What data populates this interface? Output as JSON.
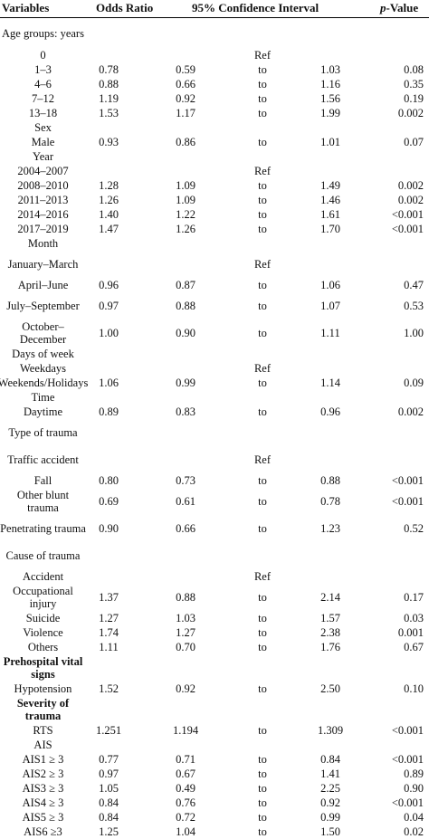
{
  "header": {
    "variables": "Variables",
    "odds_ratio": "Odds Ratio",
    "ci": "95% Confidence Interval",
    "p_italic": "p",
    "p_rest": "-Value"
  },
  "rows": [
    {
      "label": "Age groups: years",
      "h": 33
    },
    {
      "label": "0",
      "or": "",
      "lo": "",
      "to": "Ref",
      "hi": "",
      "p": "",
      "h": 16
    },
    {
      "label": "1–3",
      "or": "0.78",
      "lo": "0.59",
      "to": "to",
      "hi": "1.03",
      "p": "0.08",
      "h": 16
    },
    {
      "label": "4–6",
      "or": "0.88",
      "lo": "0.66",
      "to": "to",
      "hi": "1.16",
      "p": "0.35",
      "h": 16
    },
    {
      "label": "7–12",
      "or": "1.19",
      "lo": "0.92",
      "to": "to",
      "hi": "1.56",
      "p": "0.19",
      "h": 16
    },
    {
      "label": "13–18",
      "or": "1.53",
      "lo": "1.17",
      "to": "to",
      "hi": "1.99",
      "p": "0.002",
      "h": 16
    },
    {
      "label": "Sex",
      "h": 16
    },
    {
      "label": "Male",
      "or": "0.93",
      "lo": "0.86",
      "to": "to",
      "hi": "1.01",
      "p": "0.07",
      "h": 16
    },
    {
      "label": "Year",
      "h": 16
    },
    {
      "label": "2004–2007",
      "to": "Ref",
      "h": 16
    },
    {
      "label": "2008–2010",
      "or": "1.28",
      "lo": "1.09",
      "to": "to",
      "hi": "1.49",
      "p": "0.002",
      "h": 16
    },
    {
      "label": "2011–2013",
      "or": "1.26",
      "lo": "1.09",
      "to": "to",
      "hi": "1.46",
      "p": "0.002",
      "h": 16
    },
    {
      "label": "2014–2016",
      "or": "1.40",
      "lo": "1.22",
      "to": "to",
      "hi": "1.61",
      "p": "<0.001",
      "h": 16
    },
    {
      "label": "2017–2019",
      "or": "1.47",
      "lo": "1.26",
      "to": "to",
      "hi": "1.70",
      "p": "<0.001",
      "h": 16
    },
    {
      "label": "Month",
      "h": 16
    },
    {
      "label": "January–March",
      "to": "Ref",
      "h": 30
    },
    {
      "label": "April–June",
      "or": "0.96",
      "lo": "0.87",
      "to": "to",
      "hi": "1.06",
      "p": "0.47",
      "h": 16
    },
    {
      "label": "July–September",
      "or": "0.97",
      "lo": "0.88",
      "to": "to",
      "hi": "1.07",
      "p": "0.53",
      "h": 30
    },
    {
      "label": "October–December",
      "or": "1.00",
      "lo": "0.90",
      "to": "to",
      "hi": "1.11",
      "p": "1.00",
      "h": 30
    },
    {
      "label": "Days of week",
      "h": 16
    },
    {
      "label": "Weekdays",
      "to": "Ref",
      "h": 16
    },
    {
      "label": "Weekends/Holidays",
      "or": "1.06",
      "lo": "0.99",
      "to": "to",
      "hi": "1.14",
      "p": "0.09",
      "h": 16
    },
    {
      "label": "Time",
      "h": 16
    },
    {
      "label": "Daytime",
      "or": "0.89",
      "lo": "0.83",
      "to": "to",
      "hi": "0.96",
      "p": "0.002",
      "h": 16
    },
    {
      "label": "Type of trauma",
      "h": 30
    },
    {
      "label": "Traffic accident",
      "to": "Ref",
      "h": 30
    },
    {
      "label": "Fall",
      "or": "0.80",
      "lo": "0.73",
      "to": "to",
      "hi": "0.88",
      "p": "<0.001",
      "h": 16
    },
    {
      "label": "Other blunt trauma",
      "or": "0.69",
      "lo": "0.61",
      "to": "to",
      "hi": "0.78",
      "p": "<0.001",
      "h": 30
    },
    {
      "label": "Penetrating trauma",
      "or": "0.90",
      "lo": "0.66",
      "to": "to",
      "hi": "1.23",
      "p": "0.52",
      "h": 30
    },
    {
      "label": "Cause of trauma",
      "h": 30
    },
    {
      "label": "Accident",
      "to": "Ref",
      "h": 16
    },
    {
      "label": "Occupational injury",
      "or": "1.37",
      "lo": "0.88",
      "to": "to",
      "hi": "2.14",
      "p": "0.17",
      "h": 30
    },
    {
      "label": "Suicide",
      "or": "1.27",
      "lo": "1.03",
      "to": "to",
      "hi": "1.57",
      "p": "0.03",
      "h": 16
    },
    {
      "label": "Violence",
      "or": "1.74",
      "lo": "1.27",
      "to": "to",
      "hi": "2.38",
      "p": "0.001",
      "h": 16
    },
    {
      "label": "Others",
      "or": "1.11",
      "lo": "0.70",
      "to": "to",
      "hi": "1.76",
      "p": "0.67",
      "h": 16
    },
    {
      "label": "Prehospital vital signs",
      "bold": true,
      "h": 30
    },
    {
      "label": "Hypotension",
      "or": "1.52",
      "lo": "0.92",
      "to": "to",
      "hi": "2.50",
      "p": "0.10",
      "h": 16
    },
    {
      "label": "Severity of trauma",
      "bold": true,
      "h": 30
    },
    {
      "label": "RTS",
      "or": "1.251",
      "lo": "1.194",
      "to": "to",
      "hi": "1.309",
      "p": "<0.001",
      "h": 16
    },
    {
      "label": "AIS",
      "h": 16
    },
    {
      "label": "AIS1 ≥ 3",
      "or": "0.77",
      "lo": "0.71",
      "to": "to",
      "hi": "0.84",
      "p": "<0.001",
      "h": 16
    },
    {
      "label": "AIS2 ≥ 3",
      "or": "0.97",
      "lo": "0.67",
      "to": "to",
      "hi": "1.41",
      "p": "0.89",
      "h": 16
    },
    {
      "label": "AIS3 ≥ 3",
      "or": "1.05",
      "lo": "0.49",
      "to": "to",
      "hi": "2.25",
      "p": "0.90",
      "h": 16
    },
    {
      "label": "AIS4 ≥ 3",
      "or": "0.84",
      "lo": "0.76",
      "to": "to",
      "hi": "0.92",
      "p": "<0.001",
      "h": 16
    },
    {
      "label": "AIS5 ≥ 3",
      "or": "0.84",
      "lo": "0.72",
      "to": "to",
      "hi": "0.99",
      "p": "0.04",
      "h": 16
    },
    {
      "label": "AIS6 ≥3",
      "or": "1.25",
      "lo": "1.04",
      "to": "to",
      "hi": "1.50",
      "p": "0.02",
      "h": 16
    }
  ]
}
